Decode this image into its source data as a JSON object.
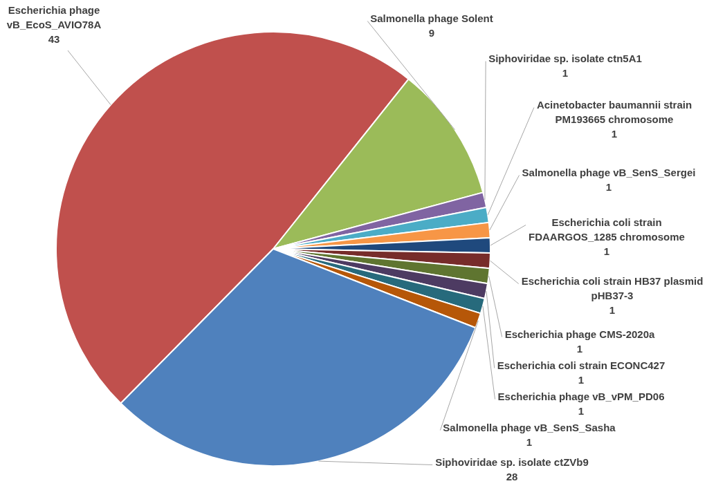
{
  "chart_data": {
    "type": "pie",
    "categories": [
      "Escherichia phage vB_EcoS_AVIO78A",
      "Salmonella phage Solent",
      "Siphoviridae sp. isolate ctn5A1",
      "Acinetobacter baumannii strain PM193665 chromosome",
      "Salmonella phage vB_SenS_Sergei",
      "Escherichia coli strain FDAARGOS_1285 chromosome",
      "Escherichia coli strain HB37 plasmid pHB37-3",
      "Escherichia phage CMS-2020a",
      "Escherichia coli strain ECONC427",
      "Escherichia phage vB_vPM_PD06",
      "Salmonella phage vB_SenS_Sasha",
      "Siphoviridae sp. isolate ctZVb9"
    ],
    "values": [
      43,
      9,
      1,
      1,
      1,
      1,
      1,
      1,
      1,
      1,
      1,
      28
    ],
    "colors": [
      "#c0504d",
      "#9bbb59",
      "#8064a2",
      "#4bacc6",
      "#f79646",
      "#1f497d",
      "#772c2a",
      "#5f7530",
      "#4d3b62",
      "#276a7c",
      "#b65708",
      "#4f81bd"
    ],
    "data_labels": true,
    "legend": false
  }
}
